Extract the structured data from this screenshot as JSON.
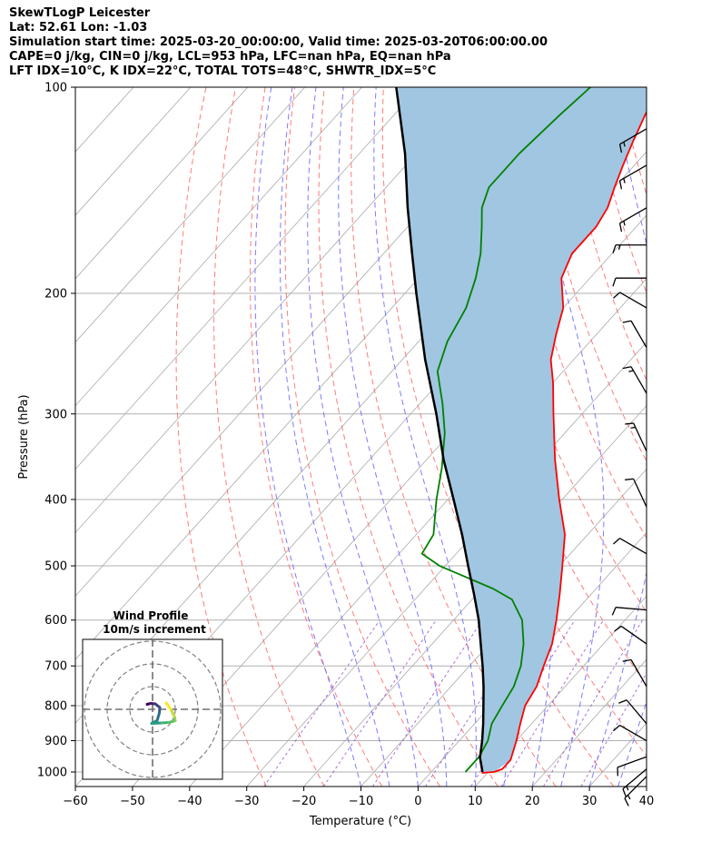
{
  "header": {
    "line1": "SkewTLogP Leicester",
    "line2": "Lat: 52.61   Lon: -1.03",
    "line3": "Simulation start time: 2025-03-20_00:00:00, Valid time: 2025-03-20T06:00:00.00",
    "line4": "CAPE=0 j/kg, CIN=0 j/kg, LCL=953 hPa, LFC=nan hPa, EQ=nan hPa",
    "line5": "LFT IDX=10°C, K IDX=22°C, TOTAL TOTS=48°C, SHWTR_IDX=5°C"
  },
  "chart_data": [
    {
      "type": "skewt",
      "xlabel": "Temperature (°C)",
      "ylabel": "Pressure (hPa)",
      "xlim": [
        -60,
        40
      ],
      "ylim": [
        1050,
        100
      ],
      "y_scale": "log",
      "x_ticks": [
        "−60",
        "−50",
        "−40",
        "−30",
        "−20",
        "−10",
        "0",
        "10",
        "20",
        "30",
        "40"
      ],
      "y_ticks": [
        "100",
        "200",
        "300",
        "400",
        "500",
        "600",
        "700",
        "800",
        "900",
        "1000"
      ],
      "grid": true,
      "colors": {
        "temperature": "#ff0000",
        "dewpoint": "#008000",
        "parcel": "#000000",
        "cape_fill": "#a1c6e1",
        "dry_adiabats": "#ff6464",
        "moist_adiabats": "#6464ff",
        "mixing_ratio": "#9650c8",
        "isotherms": "#aaaaaa",
        "wind_barbs": "#000000"
      },
      "series": [
        {
          "key": "temperature",
          "points": [
            {
              "p": 1003,
              "t": 9
            },
            {
              "p": 1000,
              "t": 11
            },
            {
              "p": 990,
              "t": 12
            },
            {
              "p": 960,
              "t": 12
            },
            {
              "p": 900,
              "t": 10
            },
            {
              "p": 850,
              "t": 8
            },
            {
              "p": 800,
              "t": 6
            },
            {
              "p": 750,
              "t": 5
            },
            {
              "p": 700,
              "t": 3
            },
            {
              "p": 650,
              "t": 1
            },
            {
              "p": 600,
              "t": -2
            },
            {
              "p": 550,
              "t": -5.5
            },
            {
              "p": 500,
              "t": -9.5
            },
            {
              "p": 450,
              "t": -14
            },
            {
              "p": 400,
              "t": -20.5
            },
            {
              "p": 350,
              "t": -27.5
            },
            {
              "p": 300,
              "t": -35
            },
            {
              "p": 270,
              "t": -40
            },
            {
              "p": 250,
              "t": -44
            },
            {
              "p": 230,
              "t": -47
            },
            {
              "p": 210,
              "t": -50
            },
            {
              "p": 190,
              "t": -55
            },
            {
              "p": 175,
              "t": -57
            },
            {
              "p": 160,
              "t": -57
            },
            {
              "p": 150,
              "t": -58
            },
            {
              "p": 140,
              "t": -60
            },
            {
              "p": 130,
              "t": -62
            },
            {
              "p": 120,
              "t": -64
            },
            {
              "p": 110,
              "t": -66
            },
            {
              "p": 100,
              "t": -68
            }
          ]
        },
        {
          "key": "dewpoint",
          "points": [
            {
              "p": 1000,
              "t": 6
            },
            {
              "p": 950,
              "t": 6
            },
            {
              "p": 900,
              "t": 5
            },
            {
              "p": 850,
              "t": 3
            },
            {
              "p": 800,
              "t": 2
            },
            {
              "p": 750,
              "t": 1
            },
            {
              "p": 700,
              "t": -1
            },
            {
              "p": 650,
              "t": -4
            },
            {
              "p": 600,
              "t": -8
            },
            {
              "p": 560,
              "t": -13
            },
            {
              "p": 540,
              "t": -18
            },
            {
              "p": 500,
              "t": -31
            },
            {
              "p": 480,
              "t": -36
            },
            {
              "p": 450,
              "t": -37
            },
            {
              "p": 400,
              "t": -42
            },
            {
              "p": 360,
              "t": -46
            },
            {
              "p": 320,
              "t": -51
            },
            {
              "p": 290,
              "t": -56
            },
            {
              "p": 260,
              "t": -62
            },
            {
              "p": 235,
              "t": -65
            },
            {
              "p": 210,
              "t": -67
            },
            {
              "p": 190,
              "t": -70
            },
            {
              "p": 175,
              "t": -73
            },
            {
              "p": 160,
              "t": -77
            },
            {
              "p": 150,
              "t": -80
            },
            {
              "p": 140,
              "t": -82
            },
            {
              "p": 125,
              "t": -82
            },
            {
              "p": 110,
              "t": -81
            },
            {
              "p": 100,
              "t": -80
            }
          ]
        },
        {
          "key": "parcel",
          "points": [
            {
              "p": 1000,
              "t": 9
            },
            {
              "p": 953,
              "t": 6.3
            },
            {
              "p": 900,
              "t": 4
            },
            {
              "p": 850,
              "t": 1.5
            },
            {
              "p": 800,
              "t": -1.3
            },
            {
              "p": 750,
              "t": -4.3
            },
            {
              "p": 700,
              "t": -7.7
            },
            {
              "p": 650,
              "t": -11.5
            },
            {
              "p": 600,
              "t": -15.6
            },
            {
              "p": 550,
              "t": -20.5
            },
            {
              "p": 500,
              "t": -26
            },
            {
              "p": 450,
              "t": -32
            },
            {
              "p": 400,
              "t": -39
            },
            {
              "p": 350,
              "t": -47
            },
            {
              "p": 300,
              "t": -55.5
            },
            {
              "p": 250,
              "t": -66
            },
            {
              "p": 200,
              "t": -78
            },
            {
              "p": 175,
              "t": -85
            },
            {
              "p": 150,
              "t": -93
            },
            {
              "p": 125,
              "t": -102
            },
            {
              "p": 100,
              "t": -114
            }
          ]
        }
      ],
      "wind_barbs": [
        {
          "p": 1015,
          "speed_kt": 15,
          "dir_deg": 225
        },
        {
          "p": 990,
          "speed_kt": 15,
          "dir_deg": 230
        },
        {
          "p": 950,
          "speed_kt": 10,
          "dir_deg": 250
        },
        {
          "p": 900,
          "speed_kt": 10,
          "dir_deg": 300
        },
        {
          "p": 850,
          "speed_kt": 10,
          "dir_deg": 320
        },
        {
          "p": 750,
          "speed_kt": 10,
          "dir_deg": 330
        },
        {
          "p": 650,
          "speed_kt": 10,
          "dir_deg": 305
        },
        {
          "p": 580,
          "speed_kt": 10,
          "dir_deg": 275
        },
        {
          "p": 480,
          "speed_kt": 10,
          "dir_deg": 300
        },
        {
          "p": 410,
          "speed_kt": 10,
          "dir_deg": 335
        },
        {
          "p": 340,
          "speed_kt": 15,
          "dir_deg": 335
        },
        {
          "p": 280,
          "speed_kt": 15,
          "dir_deg": 330
        },
        {
          "p": 240,
          "speed_kt": 10,
          "dir_deg": 330
        },
        {
          "p": 210,
          "speed_kt": 10,
          "dir_deg": 300
        },
        {
          "p": 190,
          "speed_kt": 10,
          "dir_deg": 270
        },
        {
          "p": 170,
          "speed_kt": 15,
          "dir_deg": 270
        },
        {
          "p": 150,
          "speed_kt": 15,
          "dir_deg": 240
        },
        {
          "p": 130,
          "speed_kt": 15,
          "dir_deg": 240
        },
        {
          "p": 115,
          "speed_kt": 15,
          "dir_deg": 240
        }
      ]
    },
    {
      "type": "hodograph",
      "title": "Wind Profile",
      "subtitle": "10m/s increment",
      "ring_count": 3,
      "colormap": "viridis",
      "points": [
        {
          "u": -1.2,
          "v": 1.1
        },
        {
          "u": -0.4,
          "v": 1.3
        },
        {
          "u": 0.6,
          "v": 1.2
        },
        {
          "u": 1.6,
          "v": 0.4
        },
        {
          "u": 1.5,
          "v": -0.8
        },
        {
          "u": 1.0,
          "v": -2.5
        },
        {
          "u": -0.2,
          "v": -3.1
        },
        {
          "u": 2.0,
          "v": -3.0
        },
        {
          "u": 3.6,
          "v": -2.9
        },
        {
          "u": 5.0,
          "v": -2.5
        },
        {
          "u": 4.8,
          "v": -1.5
        },
        {
          "u": 4.0,
          "v": 0.0
        },
        {
          "u": 3.0,
          "v": 1.4
        }
      ]
    }
  ]
}
